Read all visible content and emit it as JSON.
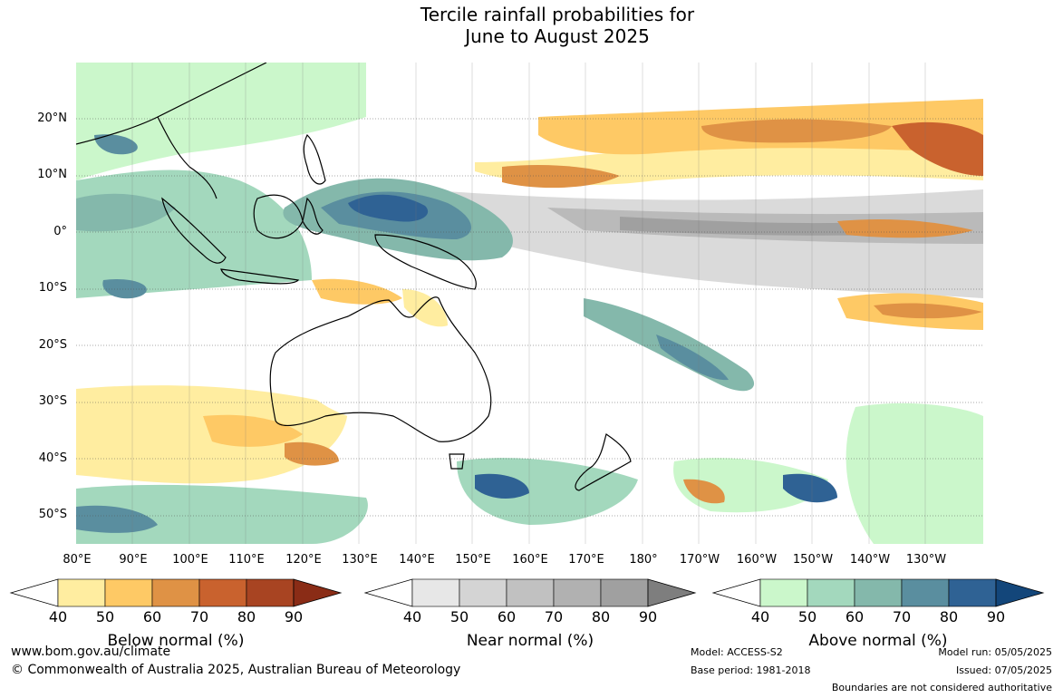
{
  "title": {
    "line1": "Tercile rainfall probabilities for",
    "line2": "June to August 2025"
  },
  "map": {
    "lat_labels": [
      "20°N",
      "10°N",
      "0°",
      "10°S",
      "20°S",
      "30°S",
      "40°S",
      "50°S"
    ],
    "lon_labels": [
      "80°E",
      "90°E",
      "100°E",
      "110°E",
      "120°E",
      "130°E",
      "140°E",
      "150°E",
      "160°E",
      "170°E",
      "180°",
      "170°W",
      "160°W",
      "150°W",
      "140°W",
      "130°W"
    ],
    "lat_range": [
      -55,
      30
    ],
    "lon_range": [
      80,
      240
    ],
    "ocean_color": "#ffffff",
    "land_outline": "#000000"
  },
  "legends": [
    {
      "title": "Below normal (%)",
      "ticks": [
        "40",
        "50",
        "60",
        "70",
        "80",
        "90"
      ],
      "colors": [
        "#ffeda0",
        "#fec965",
        "#df9245",
        "#c9622e",
        "#a84422",
        "#8a2c16"
      ]
    },
    {
      "title": "Near normal (%)",
      "ticks": [
        "40",
        "50",
        "60",
        "70",
        "80",
        "90"
      ],
      "colors": [
        "#e7e7e7",
        "#d4d4d4",
        "#c1c1c1",
        "#b1b1b1",
        "#a0a0a0",
        "#7e7e7e"
      ]
    },
    {
      "title": "Above normal (%)",
      "ticks": [
        "40",
        "50",
        "60",
        "70",
        "80",
        "90"
      ],
      "colors": [
        "#cbf7cb",
        "#a3d8bd",
        "#84b8ab",
        "#5a8e9f",
        "#2f6294",
        "#13467a"
      ]
    }
  ],
  "footer": {
    "website": "www.bom.gov.au/climate",
    "copyright": "© Commonwealth of Australia 2025, Australian Bureau of Meteorology",
    "model": "Model: ACCESS-S2",
    "base_period": "Base period: 1981-2018",
    "model_run": "Model run: 05/05/2025",
    "issued": "Issued: 07/05/2025",
    "disclaimer": "Boundaries are not considered authoritative"
  }
}
